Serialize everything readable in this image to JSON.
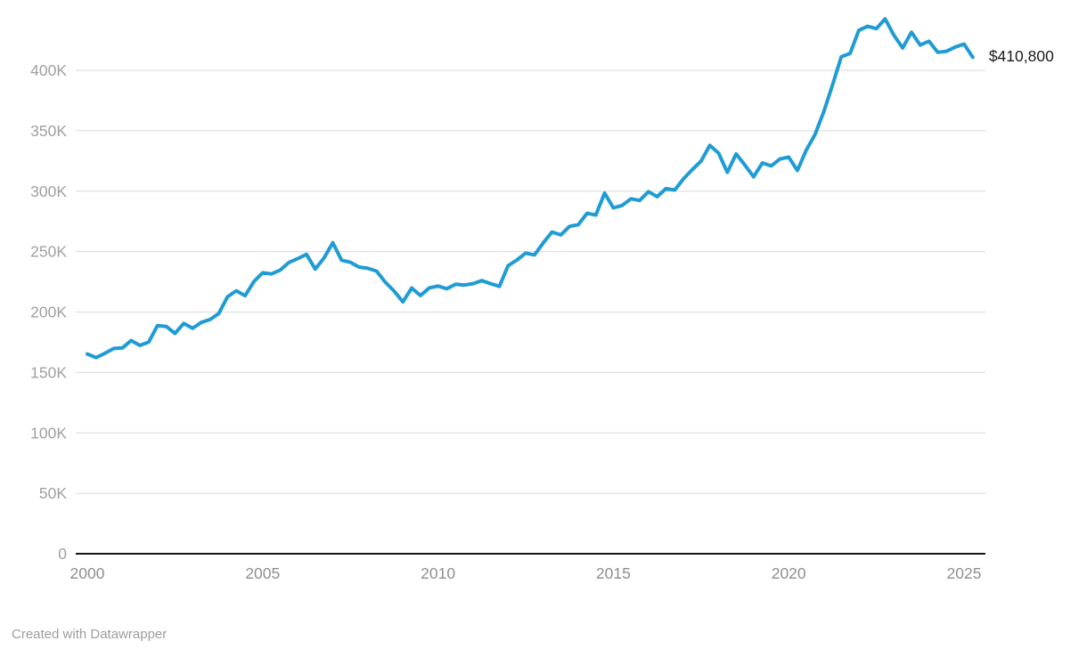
{
  "footer": {
    "attribution": "Created with Datawrapper"
  },
  "chart_data": {
    "type": "line",
    "title": "",
    "xlabel": "",
    "ylabel": "",
    "grid": "horizontal-only",
    "legend_position": "none",
    "end_label": "$410,800",
    "line_color": "#1f9cd3",
    "ylim": [
      0,
      445000
    ],
    "y_ticks": [
      {
        "label": "0",
        "value": 0
      },
      {
        "label": "50K",
        "value": 50000
      },
      {
        "label": "100K",
        "value": 100000
      },
      {
        "label": "150K",
        "value": 150000
      },
      {
        "label": "200K",
        "value": 200000
      },
      {
        "label": "250K",
        "value": 250000
      },
      {
        "label": "300K",
        "value": 300000
      },
      {
        "label": "350K",
        "value": 350000
      },
      {
        "label": "400K",
        "value": 400000
      }
    ],
    "x_ticks": [
      {
        "label": "2000",
        "year": 2000
      },
      {
        "label": "2005",
        "year": 2005
      },
      {
        "label": "2010",
        "year": 2010
      },
      {
        "label": "2015",
        "year": 2015
      },
      {
        "label": "2020",
        "year": 2020
      },
      {
        "label": "2025",
        "year": 2025
      }
    ],
    "x_start_year": 2000,
    "x_step_years": 0.25,
    "x": [
      "2000 Q1",
      "2000 Q2",
      "2000 Q3",
      "2000 Q4",
      "2001 Q1",
      "2001 Q2",
      "2001 Q3",
      "2001 Q4",
      "2002 Q1",
      "2002 Q2",
      "2002 Q3",
      "2002 Q4",
      "2003 Q1",
      "2003 Q2",
      "2003 Q3",
      "2003 Q4",
      "2004 Q1",
      "2004 Q2",
      "2004 Q3",
      "2004 Q4",
      "2005 Q1",
      "2005 Q2",
      "2005 Q3",
      "2005 Q4",
      "2006 Q1",
      "2006 Q2",
      "2006 Q3",
      "2006 Q4",
      "2007 Q1",
      "2007 Q2",
      "2007 Q3",
      "2007 Q4",
      "2008 Q1",
      "2008 Q2",
      "2008 Q3",
      "2008 Q4",
      "2009 Q1",
      "2009 Q2",
      "2009 Q3",
      "2009 Q4",
      "2010 Q1",
      "2010 Q2",
      "2010 Q3",
      "2010 Q4",
      "2011 Q1",
      "2011 Q2",
      "2011 Q3",
      "2011 Q4",
      "2012 Q1",
      "2012 Q2",
      "2012 Q3",
      "2012 Q4",
      "2013 Q1",
      "2013 Q2",
      "2013 Q3",
      "2013 Q4",
      "2014 Q1",
      "2014 Q2",
      "2014 Q3",
      "2014 Q4",
      "2015 Q1",
      "2015 Q2",
      "2015 Q3",
      "2015 Q4",
      "2016 Q1",
      "2016 Q2",
      "2016 Q3",
      "2016 Q4",
      "2017 Q1",
      "2017 Q2",
      "2017 Q3",
      "2017 Q4",
      "2018 Q1",
      "2018 Q2",
      "2018 Q3",
      "2018 Q4",
      "2019 Q1",
      "2019 Q2",
      "2019 Q3",
      "2019 Q4",
      "2020 Q1",
      "2020 Q2",
      "2020 Q3",
      "2020 Q4",
      "2021 Q1",
      "2021 Q2",
      "2021 Q3",
      "2021 Q4",
      "2022 Q1",
      "2022 Q2",
      "2022 Q3",
      "2022 Q4",
      "2023 Q1",
      "2023 Q2",
      "2023 Q3",
      "2023 Q4",
      "2024 Q1",
      "2024 Q2",
      "2024 Q3",
      "2024 Q4",
      "2025 Q1",
      "2025 Q2"
    ],
    "values": [
      165300,
      162300,
      165800,
      169800,
      170300,
      176400,
      172400,
      175100,
      188700,
      188100,
      182300,
      190600,
      186500,
      191400,
      193800,
      198800,
      212700,
      217600,
      213500,
      225300,
      232500,
      231500,
      234700,
      241000,
      244200,
      247700,
      235500,
      244700,
      257400,
      242900,
      241200,
      237200,
      236200,
      233800,
      224500,
      217300,
      208400,
      219900,
      213600,
      220000,
      221500,
      219300,
      223000,
      222300,
      223500,
      226000,
      223500,
      221200,
      238400,
      243100,
      248800,
      247200,
      257200,
      266200,
      263800,
      270900,
      272300,
      281700,
      280200,
      298400,
      286200,
      288200,
      293700,
      292300,
      299600,
      295500,
      302100,
      300900,
      310200,
      317900,
      324800,
      337900,
      331500,
      315600,
      330800,
      321600,
      311900,
      323400,
      320900,
      326600,
      328200,
      317100,
      334000,
      346800,
      365800,
      387900,
      411200,
      414000,
      433100,
      436500,
      434500,
      442600,
      429000,
      418500,
      431500,
      420900,
      424100,
      414900,
      415800,
      419300,
      421700,
      410800
    ]
  }
}
